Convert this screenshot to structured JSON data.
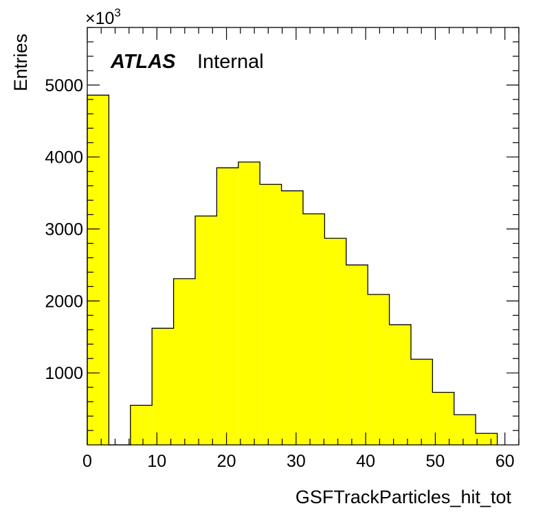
{
  "chart_data": {
    "type": "bar",
    "histogram": true,
    "xlabel": "GSFTrackParticles_hit_tot",
    "ylabel": "Entries",
    "y_multiplier": "×10",
    "y_multiplier_exp": "3",
    "label_bold": "ATLAS",
    "label_text": "Internal",
    "xlim": [
      0,
      62
    ],
    "ylim": [
      0,
      5800
    ],
    "x_ticks": [
      0,
      10,
      20,
      30,
      40,
      50,
      60
    ],
    "y_ticks": [
      1000,
      2000,
      3000,
      4000,
      5000
    ],
    "bins": [
      {
        "lo": 0,
        "hi": 3.1,
        "value": 4860
      },
      {
        "lo": 3.1,
        "hi": 6.2,
        "value": 0
      },
      {
        "lo": 6.2,
        "hi": 9.3,
        "value": 550
      },
      {
        "lo": 9.3,
        "hi": 12.4,
        "value": 1620
      },
      {
        "lo": 12.4,
        "hi": 15.5,
        "value": 2310
      },
      {
        "lo": 15.5,
        "hi": 18.6,
        "value": 3180
      },
      {
        "lo": 18.6,
        "hi": 21.7,
        "value": 3850
      },
      {
        "lo": 21.7,
        "hi": 24.8,
        "value": 3930
      },
      {
        "lo": 24.8,
        "hi": 27.9,
        "value": 3620
      },
      {
        "lo": 27.9,
        "hi": 31.0,
        "value": 3530
      },
      {
        "lo": 31.0,
        "hi": 34.1,
        "value": 3210
      },
      {
        "lo": 34.1,
        "hi": 37.2,
        "value": 2870
      },
      {
        "lo": 37.2,
        "hi": 40.3,
        "value": 2500
      },
      {
        "lo": 40.3,
        "hi": 43.4,
        "value": 2090
      },
      {
        "lo": 43.4,
        "hi": 46.5,
        "value": 1670
      },
      {
        "lo": 46.5,
        "hi": 49.6,
        "value": 1190
      },
      {
        "lo": 49.6,
        "hi": 52.7,
        "value": 730
      },
      {
        "lo": 52.7,
        "hi": 55.8,
        "value": 420
      },
      {
        "lo": 55.8,
        "hi": 58.9,
        "value": 160
      }
    ],
    "fill_color": "#ffff00",
    "line_color": "#000000",
    "grid": false
  }
}
